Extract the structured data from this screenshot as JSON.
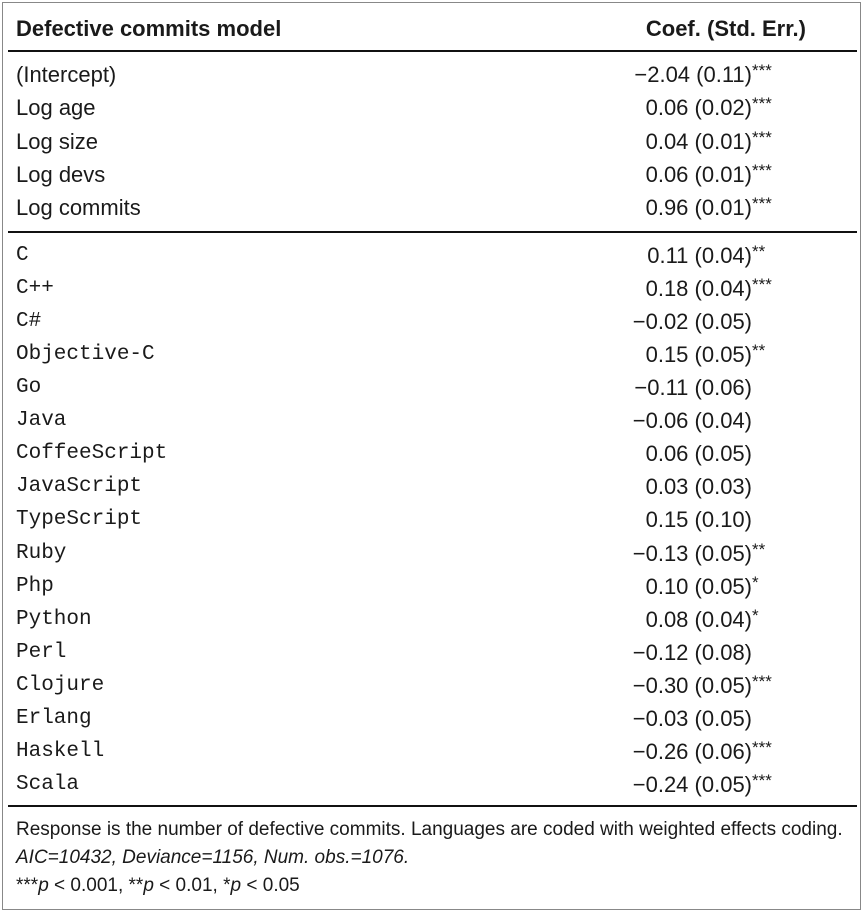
{
  "header": {
    "label": "Defective commits model",
    "value": "Coef. (Std. Err.)"
  },
  "groups": [
    {
      "rows": [
        {
          "label": "(Intercept)",
          "coef": "−2.04 (0.11)",
          "stars": "***"
        },
        {
          "label": "Log age",
          "coef": "0.06 (0.02)",
          "stars": "***"
        },
        {
          "label": "Log size",
          "coef": "0.04 (0.01)",
          "stars": "***"
        },
        {
          "label": "Log devs",
          "coef": "0.06 (0.01)",
          "stars": "***"
        },
        {
          "label": "Log commits",
          "coef": "0.96 (0.01)",
          "stars": "***"
        }
      ]
    },
    {
      "mono": true,
      "rows": [
        {
          "label": "C",
          "coef": "0.11 (0.04)",
          "stars": "**"
        },
        {
          "label": "C++",
          "coef": "0.18 (0.04)",
          "stars": "***"
        },
        {
          "label": "C#",
          "coef": "−0.02 (0.05)"
        },
        {
          "label": "Objective-C",
          "coef": "0.15 (0.05)",
          "stars": "**"
        },
        {
          "label": "Go",
          "coef": "−0.11 (0.06)"
        },
        {
          "label": "Java",
          "coef": "−0.06 (0.04)"
        },
        {
          "label": "CoffeeScript",
          "coef": "0.06 (0.05)"
        },
        {
          "label": "JavaScript",
          "coef": "0.03 (0.03)"
        },
        {
          "label": "TypeScript",
          "coef": "0.15 (0.10)"
        },
        {
          "label": "Ruby",
          "coef": "−0.13 (0.05)",
          "stars": "**"
        },
        {
          "label": "Php",
          "coef": "0.10 (0.05)",
          "stars": "*"
        },
        {
          "label": "Python",
          "coef": "0.08 (0.04)",
          "stars": "*"
        },
        {
          "label": "Perl",
          "coef": "−0.12 (0.08)"
        },
        {
          "label": "Clojure",
          "coef": "−0.30 (0.05)",
          "stars": "***"
        },
        {
          "label": "Erlang",
          "coef": "−0.03 (0.05)"
        },
        {
          "label": "Haskell",
          "coef": "−0.26 (0.06)",
          "stars": "***"
        },
        {
          "label": "Scala",
          "coef": "−0.24 (0.05)",
          "stars": "***"
        }
      ]
    }
  ],
  "footnote": {
    "text": "Response is the number of defective commits. Languages are coded with weighted effects coding. ",
    "stats": "AIC=10432, Deviance=1156, Num. obs.=1076.",
    "significance": [
      {
        "stars": "***",
        "p": "p",
        "threshold": " < 0.001, "
      },
      {
        "stars": "**",
        "p": "p",
        "threshold": " < 0.01, "
      },
      {
        "stars": "*",
        "p": "p",
        "threshold": " < 0.05"
      }
    ]
  }
}
